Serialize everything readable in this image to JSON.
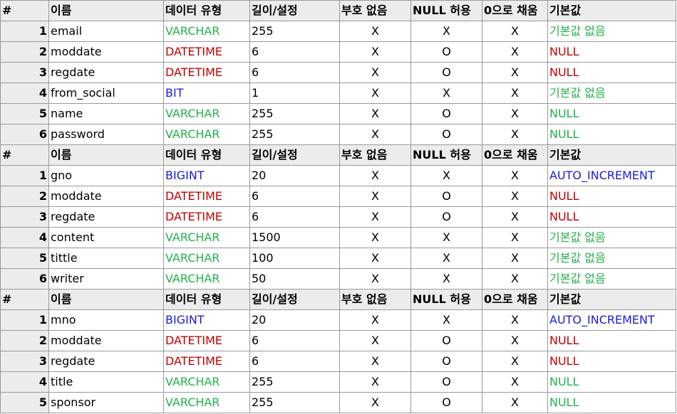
{
  "header": {
    "hash": "#",
    "name": "이름",
    "type": "데이터 유형",
    "length": "길이/설정",
    "unsigned": "부호 없음",
    "nullable": "NULL 허용",
    "zerofill": "0으로 채움",
    "default": "기본값"
  },
  "colors": {
    "varchar": "#22b14c",
    "datetime": "#c00000",
    "int": "#1a1adb",
    "header_bg": "#ececec",
    "border": "#9a9a9a"
  },
  "tables": [
    {
      "rows": [
        {
          "num": "1",
          "name": "email",
          "type": "VARCHAR",
          "length": "255",
          "unsigned": "X",
          "nullable": "X",
          "zerofill": "X",
          "default": "기본값 없음",
          "type_class": "c-varchar",
          "default_class": "c-nodefault"
        },
        {
          "num": "2",
          "name": "moddate",
          "type": "DATETIME",
          "length": "6",
          "unsigned": "X",
          "nullable": "O",
          "zerofill": "X",
          "default": "NULL",
          "type_class": "c-datetime",
          "default_class": "c-null"
        },
        {
          "num": "3",
          "name": "regdate",
          "type": "DATETIME",
          "length": "6",
          "unsigned": "X",
          "nullable": "O",
          "zerofill": "X",
          "default": "NULL",
          "type_class": "c-datetime",
          "default_class": "c-null"
        },
        {
          "num": "4",
          "name": "from_social",
          "type": "BIT",
          "length": "1",
          "unsigned": "X",
          "nullable": "X",
          "zerofill": "X",
          "default": "기본값 없음",
          "type_class": "c-bit",
          "default_class": "c-nodefault"
        },
        {
          "num": "5",
          "name": "name",
          "type": "VARCHAR",
          "length": "255",
          "unsigned": "X",
          "nullable": "O",
          "zerofill": "X",
          "default": "NULL",
          "type_class": "c-varchar",
          "default_class": "c-nullgreen"
        },
        {
          "num": "6",
          "name": "password",
          "type": "VARCHAR",
          "length": "255",
          "unsigned": "X",
          "nullable": "O",
          "zerofill": "X",
          "default": "NULL",
          "type_class": "c-varchar",
          "default_class": "c-nullgreen"
        }
      ]
    },
    {
      "rows": [
        {
          "num": "1",
          "name": "gno",
          "type": "BIGINT",
          "length": "20",
          "unsigned": "X",
          "nullable": "X",
          "zerofill": "X",
          "default": "AUTO_INCREMENT",
          "type_class": "c-bigint",
          "default_class": "c-auto"
        },
        {
          "num": "2",
          "name": "moddate",
          "type": "DATETIME",
          "length": "6",
          "unsigned": "X",
          "nullable": "O",
          "zerofill": "X",
          "default": "NULL",
          "type_class": "c-datetime",
          "default_class": "c-null"
        },
        {
          "num": "3",
          "name": "regdate",
          "type": "DATETIME",
          "length": "6",
          "unsigned": "X",
          "nullable": "O",
          "zerofill": "X",
          "default": "NULL",
          "type_class": "c-datetime",
          "default_class": "c-null"
        },
        {
          "num": "4",
          "name": "content",
          "type": "VARCHAR",
          "length": "1500",
          "unsigned": "X",
          "nullable": "X",
          "zerofill": "X",
          "default": "기본값 없음",
          "type_class": "c-varchar",
          "default_class": "c-nodefault"
        },
        {
          "num": "5",
          "name": "tittle",
          "type": "VARCHAR",
          "length": "100",
          "unsigned": "X",
          "nullable": "X",
          "zerofill": "X",
          "default": "기본값 없음",
          "type_class": "c-varchar",
          "default_class": "c-nodefault"
        },
        {
          "num": "6",
          "name": "writer",
          "type": "VARCHAR",
          "length": "50",
          "unsigned": "X",
          "nullable": "X",
          "zerofill": "X",
          "default": "기본값 없음",
          "type_class": "c-varchar",
          "default_class": "c-nodefault"
        }
      ]
    },
    {
      "rows": [
        {
          "num": "1",
          "name": "mno",
          "type": "BIGINT",
          "length": "20",
          "unsigned": "X",
          "nullable": "X",
          "zerofill": "X",
          "default": "AUTO_INCREMENT",
          "type_class": "c-bigint",
          "default_class": "c-auto"
        },
        {
          "num": "2",
          "name": "moddate",
          "type": "DATETIME",
          "length": "6",
          "unsigned": "X",
          "nullable": "O",
          "zerofill": "X",
          "default": "NULL",
          "type_class": "c-datetime",
          "default_class": "c-null"
        },
        {
          "num": "3",
          "name": "regdate",
          "type": "DATETIME",
          "length": "6",
          "unsigned": "X",
          "nullable": "O",
          "zerofill": "X",
          "default": "NULL",
          "type_class": "c-datetime",
          "default_class": "c-null"
        },
        {
          "num": "4",
          "name": "title",
          "type": "VARCHAR",
          "length": "255",
          "unsigned": "X",
          "nullable": "O",
          "zerofill": "X",
          "default": "NULL",
          "type_class": "c-varchar",
          "default_class": "c-nullgreen"
        },
        {
          "num": "5",
          "name": "sponsor",
          "type": "VARCHAR",
          "length": "255",
          "unsigned": "X",
          "nullable": "O",
          "zerofill": "X",
          "default": "NULL",
          "type_class": "c-varchar",
          "default_class": "c-nullgreen"
        }
      ]
    }
  ]
}
